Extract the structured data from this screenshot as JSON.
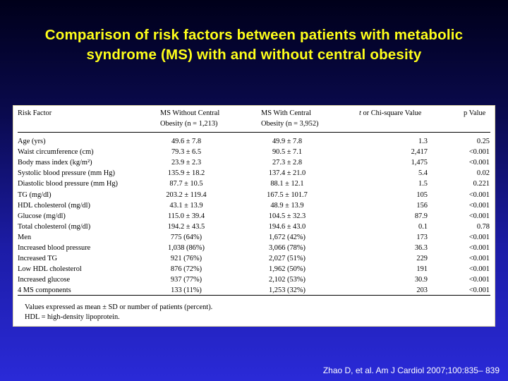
{
  "slide": {
    "title_line1": "Comparison of risk factors between patients with metabolic",
    "title_line2": "syndrome (MS) with and without central obesity",
    "citation": "Zhao D, et al. Am J Cardiol 2007;100:835– 839"
  },
  "table": {
    "headers": {
      "risk_factor": "Risk Factor",
      "without_line1": "MS Without Central",
      "without_line2": "Obesity (n = 1,213)",
      "with_line1": "MS With Central",
      "with_line2": "Obesity (n = 3,952)",
      "test_t": "t",
      "test_rest": " or Chi-square Value",
      "p_value": "p Value"
    },
    "rows": [
      {
        "factor": "Age (yrs)",
        "without": "49.6 ± 7.8",
        "with": "49.9 ± 7.8",
        "stat": "1.3",
        "p": "0.25"
      },
      {
        "factor": "Waist circumference (cm)",
        "without": "79.3 ± 6.5",
        "with": "90.5 ± 7.1",
        "stat": "2,417",
        "p": "<0.001"
      },
      {
        "factor": "Body mass index (kg/m²)",
        "without": "23.9 ± 2.3",
        "with": "27.3 ± 2.8",
        "stat": "1,475",
        "p": "<0.001"
      },
      {
        "factor": "Systolic blood pressure (mm Hg)",
        "without": "135.9 ± 18.2",
        "with": "137.4 ± 21.0",
        "stat": "5.4",
        "p": "0.02"
      },
      {
        "factor": "Diastolic blood pressure (mm Hg)",
        "without": "87.7 ± 10.5",
        "with": "88.1 ± 12.1",
        "stat": "1.5",
        "p": "0.221"
      },
      {
        "factor": "TG (mg/dl)",
        "without": "203.2 ± 119.4",
        "with": "167.5 ± 101.7",
        "stat": "105",
        "p": "<0.001"
      },
      {
        "factor": "HDL cholesterol (mg/dl)",
        "without": "43.1 ± 13.9",
        "with": "48.9 ± 13.9",
        "stat": "156",
        "p": "<0.001"
      },
      {
        "factor": "Glucose (mg/dl)",
        "without": "115.0 ± 39.4",
        "with": "104.5 ± 32.3",
        "stat": "87.9",
        "p": "<0.001"
      },
      {
        "factor": "Total cholesterol (mg/dl)",
        "without": "194.2 ± 43.5",
        "with": "194.6 ± 43.0",
        "stat": "0.1",
        "p": "0.78"
      },
      {
        "factor": "Men",
        "without": "775 (64%)",
        "with": "1,672 (42%)",
        "stat": "173",
        "p": "<0.001"
      },
      {
        "factor": "Increased blood pressure",
        "without": "1,038 (86%)",
        "with": "3,066 (78%)",
        "stat": "36.3",
        "p": "<0.001"
      },
      {
        "factor": "Increased TG",
        "without": "921 (76%)",
        "with": "2,027 (51%)",
        "stat": "229",
        "p": "<0.001"
      },
      {
        "factor": "Low HDL cholesterol",
        "without": "876 (72%)",
        "with": "1,962 (50%)",
        "stat": "191",
        "p": "<0.001"
      },
      {
        "factor": "Increased glucose",
        "without": "937 (77%)",
        "with": "2,102 (53%)",
        "stat": "30.9",
        "p": "<0.001"
      },
      {
        "factor": "4 MS components",
        "without": "133 (11%)",
        "with": "1,253 (32%)",
        "stat": "203",
        "p": "<0.001"
      }
    ],
    "notes": [
      "Values expressed as mean ± SD or number of patients (percent).",
      "HDL = high-density lipoprotein."
    ]
  }
}
